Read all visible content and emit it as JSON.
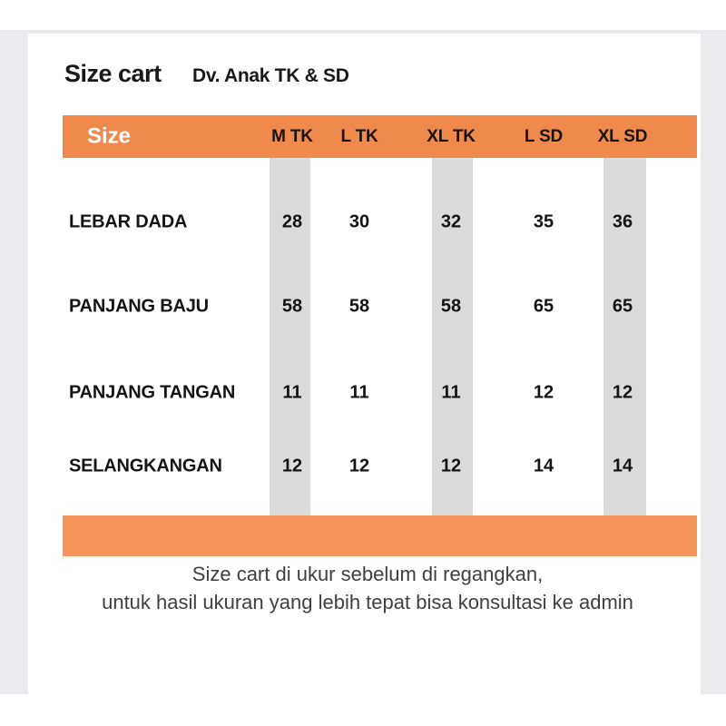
{
  "header": {
    "title": "Size cart",
    "subtitle": "Dv. Anak TK & SD"
  },
  "table": {
    "size_label": "Size",
    "columns": [
      "M TK",
      "L TK",
      "XL TK",
      "L SD",
      "XL SD"
    ],
    "rows": [
      {
        "label": "LEBAR DADA",
        "values": [
          "28",
          "30",
          "32",
          "35",
          "36"
        ]
      },
      {
        "label": "PANJANG BAJU",
        "values": [
          "58",
          "58",
          "58",
          "65",
          "65"
        ]
      },
      {
        "label": "PANJANG TANGAN",
        "values": [
          "11",
          "11",
          "11",
          "12",
          "12"
        ]
      },
      {
        "label": "SELANGKANGAN",
        "values": [
          "12",
          "12",
          "12",
          "14",
          "14"
        ]
      }
    ]
  },
  "note": {
    "line1": "Size cart di ukur sebelum di regangkan,",
    "line2": "untuk hasil ukuran yang lebih tepat bisa konsultasi ke admin"
  },
  "colors": {
    "header_bar": "#ef8a4c",
    "footer_bar": "#f4935a",
    "stripe": "#dbdbdb",
    "frame_background": "#e9ebef",
    "text": "#141414",
    "note_text": "#3f3f3f"
  },
  "chart_data": {
    "type": "table",
    "title": "Size cart",
    "subtitle": "Dv. Anak TK & SD",
    "columns": [
      "M TK",
      "L TK",
      "XL TK",
      "L SD",
      "XL SD"
    ],
    "rows": [
      {
        "label": "LEBAR DADA",
        "values": [
          28,
          30,
          32,
          35,
          36
        ]
      },
      {
        "label": "PANJANG BAJU",
        "values": [
          58,
          58,
          58,
          65,
          65
        ]
      },
      {
        "label": "PANJANG TANGAN",
        "values": [
          11,
          11,
          11,
          12,
          12
        ]
      },
      {
        "label": "SELANGKANGAN",
        "values": [
          12,
          12,
          12,
          14,
          14
        ]
      }
    ],
    "note": "Size cart di ukur sebelum di regangkan, untuk hasil ukuran yang lebih tepat bisa konsultasi ke admin"
  }
}
